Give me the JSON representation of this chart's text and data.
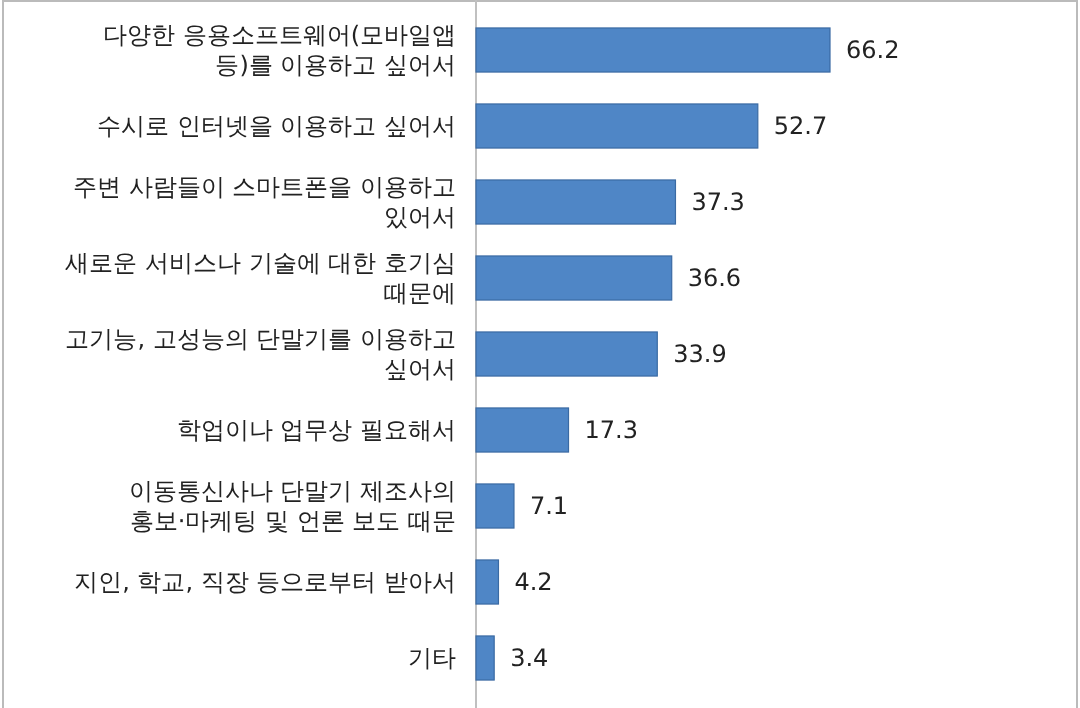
{
  "chart_data": {
    "type": "bar",
    "orientation": "horizontal",
    "data_labels": true,
    "color": "#4f86c6",
    "categories": [
      "다양한 응용소프트웨어(모바일앱 등)를 이용하고 싶어서",
      "수시로 인터넷을 이용하고 싶어서",
      "주변 사람들이 스마트폰을 이용하고 있어서",
      "새로운 서비스나 기술에 대한 호기심 때문에",
      "고기능, 고성능의 단말기를 이용하고 싶어서",
      "학업이나 업무상 필요해서",
      "이동통신사나 단말기 제조사의 홍보·마케팅 및 언론 보도 때문",
      "지인, 학교, 직장 등으로부터 받아서",
      "기타"
    ],
    "values": [
      66.2,
      52.7,
      37.3,
      36.6,
      33.9,
      17.3,
      7.1,
      4.2,
      3.4
    ]
  }
}
